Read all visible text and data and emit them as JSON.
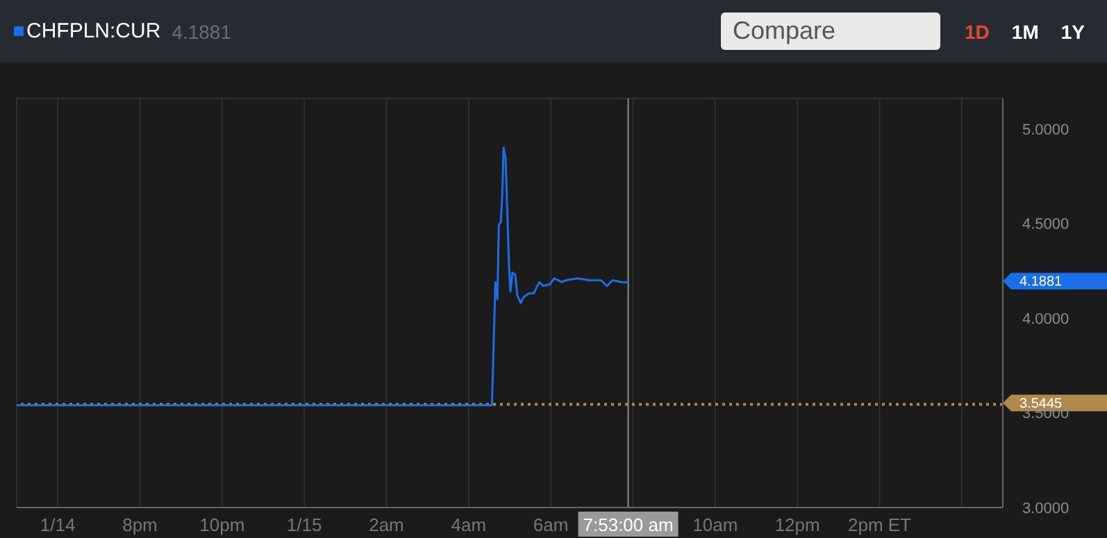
{
  "chart_data": {
    "type": "line",
    "legend": "top left",
    "grid": true,
    "marker": "none",
    "line_style": "solid",
    "x": [
      "--01-14T17:00",
      "--01-14T20:00",
      "--01-15T00:00",
      "--01-15T04:00",
      "--01-15T04:34",
      "--01-15T04:39",
      "--01-15T04:42",
      "--01-15T04:44",
      "--01-15T04:47",
      "--01-15T04:49",
      "--01-15T04:51",
      "--01-15T04:54",
      "--01-15T04:59",
      "--01-15T05:01",
      "--01-15T05:04",
      "--01-15T05:08",
      "--01-15T05:11",
      "--01-15T05:16",
      "--01-15T05:20",
      "--01-15T05:28",
      "--01-15T05:35",
      "--01-15T05:43",
      "--01-15T05:49",
      "--01-15T05:59",
      "--01-15T06:05",
      "--01-15T06:16",
      "--01-15T06:22",
      "--01-15T06:39",
      "--01-15T06:56",
      "--01-15T07:13",
      "--01-15T07:22",
      "--01-15T07:30",
      "--01-15T07:44",
      "--01-15T07:53"
    ],
    "series": [
      {
        "name": "CHFPLN:CUR",
        "color": "#1a6fe8",
        "values": [
          3.54,
          3.54,
          3.54,
          3.54,
          3.54,
          4.19,
          4.1,
          4.49,
          4.51,
          4.65,
          4.9,
          4.84,
          4.27,
          4.14,
          4.24,
          4.23,
          4.12,
          4.08,
          4.11,
          4.13,
          4.13,
          4.19,
          4.17,
          4.18,
          4.21,
          4.19,
          4.2,
          4.21,
          4.2,
          4.2,
          4.17,
          4.2,
          4.19,
          4.1881
        ]
      }
    ],
    "xlim": [
      "--01-14T17:00",
      "--01-15T17:00"
    ],
    "xticks": [
      {
        "value": "--01-14T18:00",
        "label": "1/14"
      },
      {
        "value": "--01-14T20:00",
        "label": "8pm"
      },
      {
        "value": "--01-14T22:00",
        "label": "10pm"
      },
      {
        "value": "--01-15T00:00",
        "label": "1/15"
      },
      {
        "value": "--01-15T02:00",
        "label": "2am"
      },
      {
        "value": "--01-15T04:00",
        "label": "4am"
      },
      {
        "value": "--01-15T06:00",
        "label": "6am"
      },
      {
        "value": "--01-15T08:00",
        "label": null
      },
      {
        "value": "--01-15T10:00",
        "label": "10am"
      },
      {
        "value": "--01-15T12:00",
        "label": "12pm"
      },
      {
        "value": "--01-15T14:00",
        "label": "2pm ET"
      },
      {
        "value": "--01-15T16:00",
        "label": null
      }
    ],
    "ylim": [
      3.0,
      5.16
    ],
    "yticks": [
      {
        "value": 3,
        "label": "3.0000"
      },
      {
        "value": 3.5,
        "label": "3.5000"
      },
      {
        "value": 4,
        "label": "4.0000"
      },
      {
        "value": 4.5,
        "label": "4.5000"
      },
      {
        "value": 5,
        "label": "5.0000"
      }
    ],
    "ref_lines": [
      {
        "axis": "y",
        "value": 3.5445,
        "label": "3.5445",
        "color": "#b08a4a",
        "line_style": "dotted"
      },
      {
        "axis": "x",
        "value": "--01-15T07:53",
        "label": "7:53:00 am",
        "color": "#8a8a8a",
        "line_style": "solid"
      }
    ],
    "annotations": [
      "4.1881",
      "Compare",
      "1D",
      "1M",
      "1Y",
      "4.1881"
    ]
  }
}
